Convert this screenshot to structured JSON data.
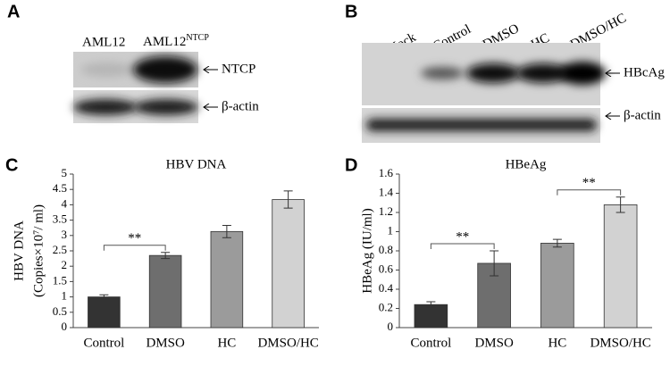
{
  "panels": [
    "A",
    "B",
    "C",
    "D"
  ],
  "blots": [
    {
      "lanes": [
        {
          "text": "AML12"
        },
        {
          "text": "AML12",
          "sup": "NTCP"
        }
      ],
      "bands": [
        "NTCP",
        "β-actin"
      ]
    },
    {
      "lanes": [
        {
          "text": "Mock"
        },
        {
          "text": "Control"
        },
        {
          "text": "DMSO"
        },
        {
          "text": "HC"
        },
        {
          "text": "DMSO/HC"
        }
      ],
      "bands": [
        "HBcAg",
        "β-actin"
      ]
    }
  ],
  "chart_data": [
    {
      "type": "bar",
      "title": "HBV DNA",
      "ylabel": [
        "HBV DNA",
        "(Copies×10⁷/ ml)"
      ],
      "categories": [
        "Control",
        "DMSO",
        "HC",
        "DMSO/HC"
      ],
      "values": [
        1.0,
        2.35,
        3.13,
        4.17
      ],
      "errors": [
        0.07,
        0.1,
        0.2,
        0.28
      ],
      "colors": [
        "#333333",
        "#6e6e6e",
        "#9b9b9b",
        "#d2d2d2"
      ],
      "ylim": [
        0,
        5
      ],
      "yticks": [
        0,
        0.5,
        1,
        1.5,
        2,
        2.5,
        3,
        3.5,
        4,
        4.5,
        5
      ],
      "significance": [
        {
          "between": [
            "Control",
            "DMSO"
          ],
          "label": "**"
        }
      ]
    },
    {
      "type": "bar",
      "title": "HBeAg",
      "ylabel": [
        "HBeAg (IU/ml)"
      ],
      "categories": [
        "Control",
        "DMSO",
        "HC",
        "DMSO/HC"
      ],
      "values": [
        0.24,
        0.67,
        0.88,
        1.28
      ],
      "errors": [
        0.03,
        0.13,
        0.04,
        0.08
      ],
      "colors": [
        "#333333",
        "#6e6e6e",
        "#9b9b9b",
        "#d2d2d2"
      ],
      "ylim": [
        0,
        1.6
      ],
      "yticks": [
        0,
        0.2,
        0.4,
        0.6,
        0.8,
        1,
        1.2,
        1.4,
        1.6
      ],
      "significance": [
        {
          "between": [
            "Control",
            "DMSO"
          ],
          "label": "**"
        },
        {
          "between": [
            "HC",
            "DMSO/HC"
          ],
          "label": "**"
        }
      ]
    }
  ]
}
